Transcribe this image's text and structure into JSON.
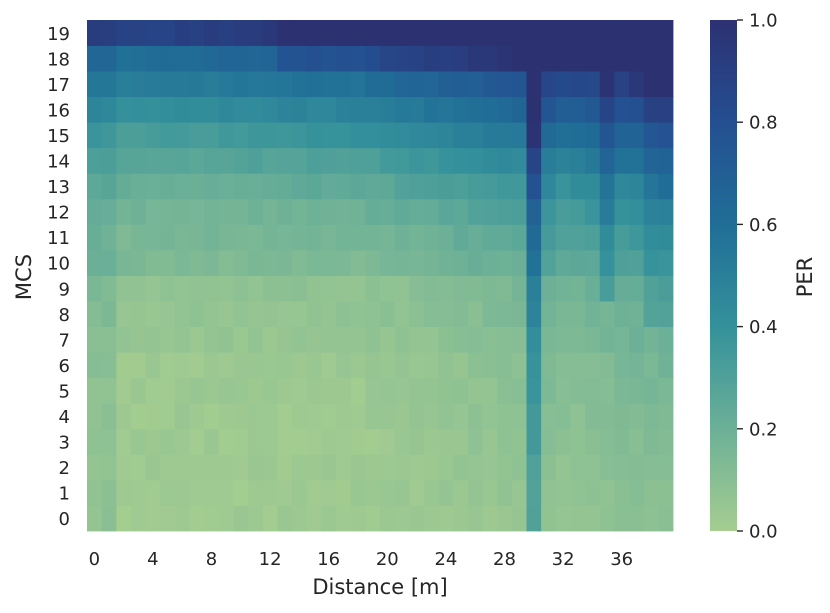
{
  "chart_data": {
    "type": "heatmap",
    "title": "",
    "xlabel": "Distance [m]",
    "ylabel": "MCS",
    "colorbar_label": "PER",
    "x_tick_labels": [
      "0",
      "4",
      "8",
      "12",
      "16",
      "20",
      "24",
      "28",
      "32",
      "36"
    ],
    "x_tick_values": [
      0,
      4,
      8,
      12,
      16,
      20,
      24,
      28,
      32,
      36
    ],
    "y_tick_labels": [
      "0",
      "1",
      "2",
      "3",
      "4",
      "5",
      "6",
      "7",
      "8",
      "9",
      "10",
      "11",
      "12",
      "13",
      "14",
      "15",
      "16",
      "17",
      "18",
      "19"
    ],
    "colorbar_tick_labels": [
      "0.0",
      "0.2",
      "0.4",
      "0.6",
      "0.8",
      "1.0"
    ],
    "colorbar_range": [
      0,
      1
    ],
    "colormap": "crest",
    "colormap_stops": [
      "#a5cd90",
      "#6cb097",
      "#34919b",
      "#206e97",
      "#244f91",
      "#2c3172"
    ],
    "distance_range": [
      0,
      39
    ],
    "mcs_range": [
      0,
      19
    ],
    "grid": false,
    "description_note": "PER values estimated per (distance, MCS) cell; rows indexed by MCS 0-19, columns by distance 0-39 m"
  }
}
